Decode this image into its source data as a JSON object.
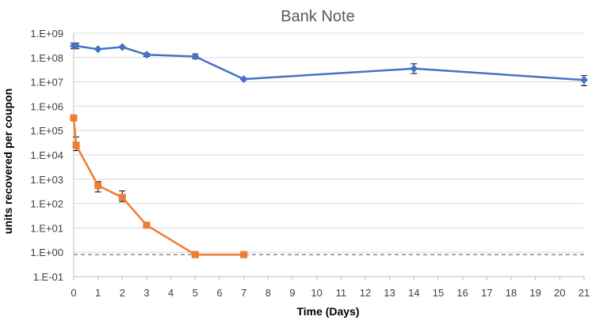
{
  "chart_data": {
    "type": "line",
    "title": "Bank Note",
    "xlabel": "Time (Days)",
    "ylabel": "units recovered per coupon",
    "y_scale": "log",
    "ylim": [
      0.1,
      1000000000
    ],
    "xlim": [
      0,
      21
    ],
    "x_ticks": [
      "0",
      "1",
      "2",
      "3",
      "4",
      "5",
      "6",
      "7",
      "8",
      "9",
      "10",
      "11",
      "12",
      "13",
      "14",
      "15",
      "16",
      "17",
      "18",
      "19",
      "20",
      "21"
    ],
    "y_ticks": [
      "1.E-01",
      "1.E+00",
      "1.E+01",
      "1.E+02",
      "1.E+03",
      "1.E+04",
      "1.E+05",
      "1.E+06",
      "1.E+07",
      "1.E+08",
      "1.E+09"
    ],
    "grid": "horizontal",
    "legend": "none",
    "reference_line": {
      "y": 0.8,
      "style": "dashed",
      "color": "#808080"
    },
    "series": [
      {
        "color": "#4472C4",
        "marker": "diamond",
        "x": [
          0,
          0.1,
          1,
          2,
          3,
          5,
          7,
          14,
          21
        ],
        "y": [
          300000000,
          300000000,
          220000000,
          270000000,
          130000000,
          110000000,
          13000000,
          35000000,
          12000000
        ],
        "error_low": [
          230000000,
          230000000,
          null,
          null,
          110000000,
          90000000,
          null,
          22000000,
          7000000
        ],
        "error_high": [
          390000000,
          390000000,
          null,
          null,
          150000000,
          140000000,
          null,
          55000000,
          18000000
        ]
      },
      {
        "color": "#ED7D31",
        "marker": "square",
        "x": [
          0,
          0.1,
          1,
          2,
          3,
          5,
          7
        ],
        "y": [
          330000,
          25000,
          550,
          180,
          13,
          0.8,
          0.8
        ],
        "error_low": [
          null,
          15000,
          300,
          120,
          null,
          null,
          null
        ],
        "error_high": [
          null,
          55000,
          800,
          330,
          null,
          null,
          null
        ]
      }
    ]
  }
}
